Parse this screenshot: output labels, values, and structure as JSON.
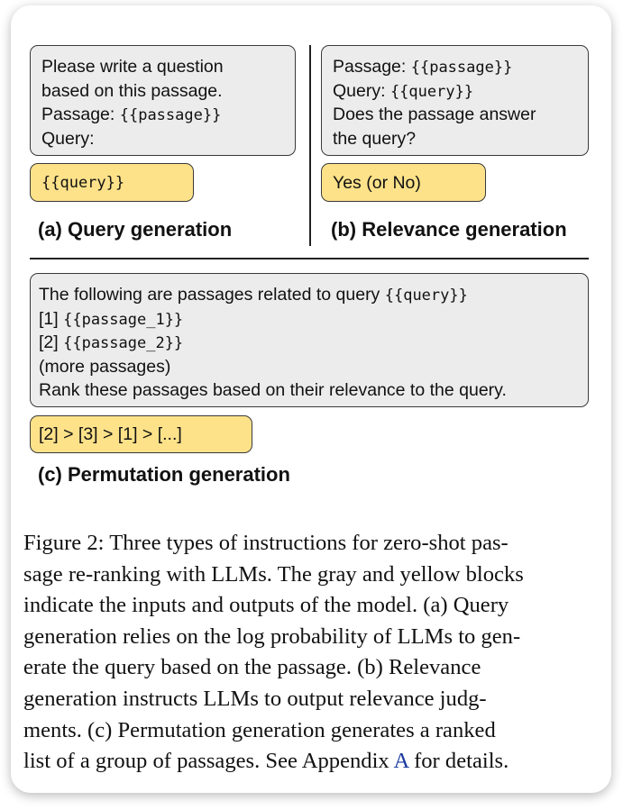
{
  "panel_a": {
    "input_lines": [
      {
        "pre": "Please write a question",
        "var": "",
        "post": ""
      },
      {
        "pre": "based on this passage.",
        "var": "",
        "post": ""
      },
      {
        "pre": "Passage: ",
        "var": "{{passage}}",
        "post": ""
      },
      {
        "pre": "Query:",
        "var": "",
        "post": ""
      }
    ],
    "output": "{{query}}",
    "label": "(a) Query generation"
  },
  "panel_b": {
    "input_lines": [
      {
        "pre": "Passage: ",
        "var": "{{passage}}",
        "post": ""
      },
      {
        "pre": "Query: ",
        "var": "{{query}}",
        "post": ""
      },
      {
        "pre": "Does the passage answer",
        "var": "",
        "post": ""
      },
      {
        "pre": "the query?",
        "var": "",
        "post": ""
      }
    ],
    "output": "Yes (or No)",
    "label": "(b) Relevance generation"
  },
  "panel_c": {
    "input_lines": [
      {
        "pre": "The following are passages related to query ",
        "var": "{{query}}",
        "post": ""
      },
      {
        "pre": "[1] ",
        "var": "{{passage_1}}",
        "post": ""
      },
      {
        "pre": "[2] ",
        "var": "{{passage_2}}",
        "post": ""
      },
      {
        "pre": "(more passages)",
        "var": "",
        "post": ""
      },
      {
        "pre": "Rank these passages based on their relevance to the query.",
        "var": "",
        "post": ""
      }
    ],
    "output": "[2] > [3] > [1] > [...]",
    "label": "(c) Permutation generation"
  },
  "caption": {
    "lines": [
      {
        "pre": "Figure 2: Three types of instructions for zero-shot pas-",
        "ref": "",
        "post": ""
      },
      {
        "pre": "sage re-ranking with LLMs. The gray and yellow blocks",
        "ref": "",
        "post": ""
      },
      {
        "pre": "indicate the inputs and outputs of the model. (a) Query",
        "ref": "",
        "post": ""
      },
      {
        "pre": "generation relies on the log probability of LLMs to gen-",
        "ref": "",
        "post": ""
      },
      {
        "pre": "erate the query based on the passage.  (b) Relevance",
        "ref": "",
        "post": ""
      },
      {
        "pre": "generation instructs LLMs to output relevance judg-",
        "ref": "",
        "post": ""
      },
      {
        "pre": "ments. (c) Permutation generation generates a ranked",
        "ref": "",
        "post": ""
      },
      {
        "pre": "list of a group of passages. See Appendix ",
        "ref": "A",
        "post": " for details."
      }
    ]
  },
  "colors": {
    "input_block": "#ececec",
    "output_block": "#fde28a",
    "reference_link": "#1a3aa0"
  }
}
